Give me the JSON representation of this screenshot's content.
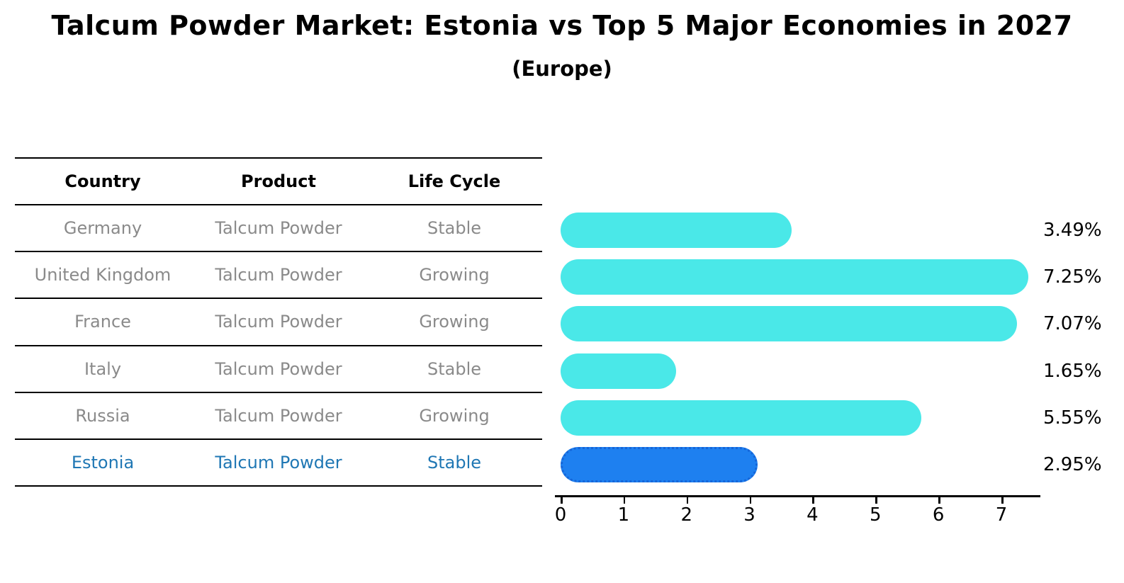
{
  "title": "Talcum Powder Market: Estonia vs Top 5 Major Economies in 2027",
  "subtitle": "(Europe)",
  "table": {
    "headers": [
      "Country",
      "Product",
      "Life Cycle"
    ],
    "rows": [
      {
        "country": "Germany",
        "product": "Talcum Powder",
        "life_cycle": "Stable",
        "highlight": false
      },
      {
        "country": "United Kingdom",
        "product": "Talcum Powder",
        "life_cycle": "Growing",
        "highlight": false
      },
      {
        "country": "France",
        "product": "Talcum Powder",
        "life_cycle": "Growing",
        "highlight": false
      },
      {
        "country": "Italy",
        "product": "Talcum Powder",
        "life_cycle": "Stable",
        "highlight": false
      },
      {
        "country": "Russia",
        "product": "Talcum Powder",
        "life_cycle": "Growing",
        "highlight": true
      },
      {
        "country": "Estonia",
        "product": "Talcum Powder",
        "life_cycle": "Stable",
        "highlight": true
      }
    ]
  },
  "chart_data": {
    "type": "bar",
    "orientation": "horizontal",
    "title": "Talcum Powder Market: Estonia vs Top 5 Major Economies in 2027",
    "subtitle": "(Europe)",
    "categories": [
      "Germany",
      "United Kingdom",
      "France",
      "Italy",
      "Russia",
      "Estonia"
    ],
    "values": [
      3.49,
      7.25,
      7.07,
      1.65,
      5.55,
      2.95
    ],
    "value_labels": [
      "3.49%",
      "7.25%",
      "7.07%",
      "1.65%",
      "5.55%",
      "2.95%"
    ],
    "xlabel": "",
    "ylabel": "",
    "xlim": [
      0,
      7.6
    ],
    "xticks": [
      0,
      1,
      2,
      3,
      4,
      5,
      6,
      7
    ],
    "grid": false,
    "legend": false,
    "highlight_index": 5,
    "bar_color": "#4ae8e8",
    "highlight_bar_color": "#1e80f0",
    "highlight_text_color": "#1f77b4"
  },
  "colors": {
    "bar_cyan": "#4ae8e8",
    "bar_blue": "#1e80f0",
    "bar_blue_border": "#1565d8",
    "row_text_gray": "#8a8a8a",
    "estonia_text_blue": "#1f77b4",
    "line_black": "#000000"
  }
}
